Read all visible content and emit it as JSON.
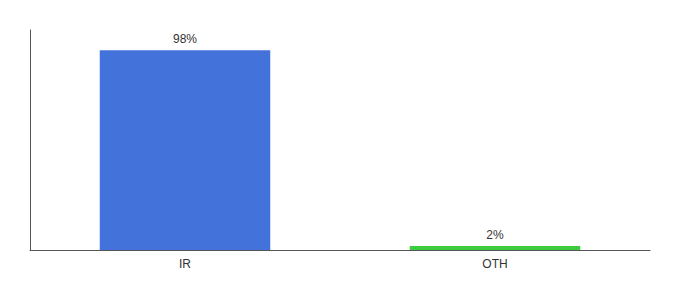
{
  "chart_data": {
    "type": "bar",
    "categories": [
      "IR",
      "OTH"
    ],
    "values": [
      98,
      2
    ],
    "value_labels": [
      "98%",
      "2%"
    ],
    "colors": [
      "#4472db",
      "#3dcc3d"
    ],
    "data_labels": true,
    "ylim": [
      0,
      108
    ],
    "tick_labels": "x",
    "grid": false
  }
}
